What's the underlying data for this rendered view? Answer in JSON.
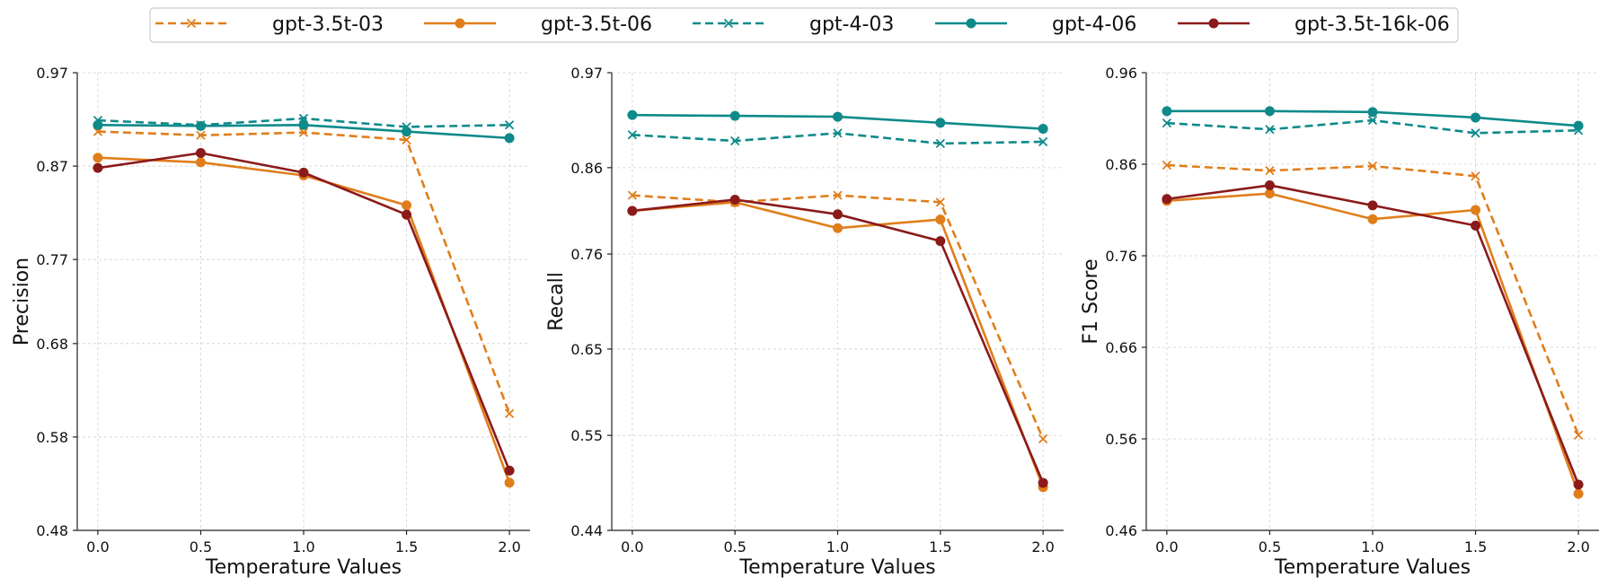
{
  "legend": {
    "items": [
      {
        "key": "gpt35t03",
        "label": "gpt-3.5t-03"
      },
      {
        "key": "gpt35t06",
        "label": "gpt-3.5t-06"
      },
      {
        "key": "gpt403",
        "label": "gpt-4-03"
      },
      {
        "key": "gpt406",
        "label": "gpt-4-06"
      },
      {
        "key": "gpt35t16k06",
        "label": "gpt-3.5t-16k-06"
      }
    ]
  },
  "series_styles": {
    "gpt35t03": {
      "color": "#E07E1B",
      "dashed": true,
      "marker": "x"
    },
    "gpt35t06": {
      "color": "#E07E1B",
      "dashed": false,
      "marker": "o"
    },
    "gpt403": {
      "color": "#0E8A8A",
      "dashed": true,
      "marker": "x"
    },
    "gpt406": {
      "color": "#0E8A8A",
      "dashed": false,
      "marker": "o"
    },
    "gpt35t16k06": {
      "color": "#8B1A1A",
      "dashed": false,
      "marker": "o"
    }
  },
  "chart_data": [
    {
      "type": "line",
      "title": "",
      "xlabel": "Temperature Values",
      "ylabel": "Precision",
      "x": [
        0.0,
        0.5,
        1.0,
        1.5,
        2.0
      ],
      "x_tick_labels": [
        "0.0",
        "0.5",
        "1.0",
        "1.5",
        "2.0"
      ],
      "xlim": [
        -0.1,
        2.1
      ],
      "ylim": [
        0.48,
        0.97
      ],
      "y_ticks": [
        0.48,
        0.58,
        0.68,
        0.77,
        0.87,
        0.97
      ],
      "y_tick_labels": [
        "0.48",
        "0.58",
        "0.68",
        "0.77",
        "0.87",
        "0.97"
      ],
      "grid": true,
      "series": [
        {
          "key": "gpt35t03",
          "name": "gpt-3.5t-03",
          "values": [
            0.907,
            0.903,
            0.906,
            0.898,
            0.605
          ]
        },
        {
          "key": "gpt35t06",
          "name": "gpt-3.5t-06",
          "values": [
            0.879,
            0.874,
            0.86,
            0.828,
            0.531
          ]
        },
        {
          "key": "gpt403",
          "name": "gpt-4-03",
          "values": [
            0.919,
            0.914,
            0.921,
            0.912,
            0.914
          ]
        },
        {
          "key": "gpt406",
          "name": "gpt-4-06",
          "values": [
            0.914,
            0.913,
            0.914,
            0.907,
            0.9
          ]
        },
        {
          "key": "gpt35t16k06",
          "name": "gpt-3.5t-16k-06",
          "values": [
            0.868,
            0.884,
            0.863,
            0.818,
            0.544
          ]
        }
      ]
    },
    {
      "type": "line",
      "title": "",
      "xlabel": "Temperature Values",
      "ylabel": "Recall",
      "x": [
        0.0,
        0.5,
        1.0,
        1.5,
        2.0
      ],
      "x_tick_labels": [
        "0.0",
        "0.5",
        "1.0",
        "1.5",
        "2.0"
      ],
      "xlim": [
        -0.1,
        2.1
      ],
      "ylim": [
        0.44,
        0.97
      ],
      "y_ticks": [
        0.44,
        0.55,
        0.65,
        0.76,
        0.86,
        0.97
      ],
      "y_tick_labels": [
        "0.44",
        "0.55",
        "0.65",
        "0.76",
        "0.86",
        "0.97"
      ],
      "grid": true,
      "series": [
        {
          "key": "gpt35t03",
          "name": "gpt-3.5t-03",
          "values": [
            0.828,
            0.82,
            0.828,
            0.82,
            0.546
          ]
        },
        {
          "key": "gpt35t06",
          "name": "gpt-3.5t-06",
          "values": [
            0.81,
            0.82,
            0.79,
            0.8,
            0.49
          ]
        },
        {
          "key": "gpt403",
          "name": "gpt-4-03",
          "values": [
            0.898,
            0.891,
            0.9,
            0.888,
            0.89
          ]
        },
        {
          "key": "gpt406",
          "name": "gpt-4-06",
          "values": [
            0.921,
            0.92,
            0.919,
            0.912,
            0.905
          ]
        },
        {
          "key": "gpt35t16k06",
          "name": "gpt-3.5t-16k-06",
          "values": [
            0.81,
            0.823,
            0.806,
            0.775,
            0.495
          ]
        }
      ]
    },
    {
      "type": "line",
      "title": "",
      "xlabel": "Temperature Values",
      "ylabel": "F1 Score",
      "x": [
        0.0,
        0.5,
        1.0,
        1.5,
        2.0
      ],
      "x_tick_labels": [
        "0.0",
        "0.5",
        "1.0",
        "1.5",
        "2.0"
      ],
      "xlim": [
        -0.1,
        2.1
      ],
      "ylim": [
        0.46,
        0.96
      ],
      "y_ticks": [
        0.46,
        0.56,
        0.66,
        0.76,
        0.86,
        0.96
      ],
      "y_tick_labels": [
        "0.46",
        "0.56",
        "0.66",
        "0.76",
        "0.86",
        "0.96"
      ],
      "grid": true,
      "series": [
        {
          "key": "gpt35t03",
          "name": "gpt-3.5t-03",
          "values": [
            0.859,
            0.853,
            0.858,
            0.847,
            0.564
          ]
        },
        {
          "key": "gpt35t06",
          "name": "gpt-3.5t-06",
          "values": [
            0.82,
            0.828,
            0.8,
            0.81,
            0.5
          ]
        },
        {
          "key": "gpt403",
          "name": "gpt-4-03",
          "values": [
            0.905,
            0.898,
            0.908,
            0.894,
            0.897
          ]
        },
        {
          "key": "gpt406",
          "name": "gpt-4-06",
          "values": [
            0.918,
            0.918,
            0.917,
            0.911,
            0.902
          ]
        },
        {
          "key": "gpt35t16k06",
          "name": "gpt-3.5t-16k-06",
          "values": [
            0.822,
            0.837,
            0.815,
            0.793,
            0.51
          ]
        }
      ]
    }
  ]
}
